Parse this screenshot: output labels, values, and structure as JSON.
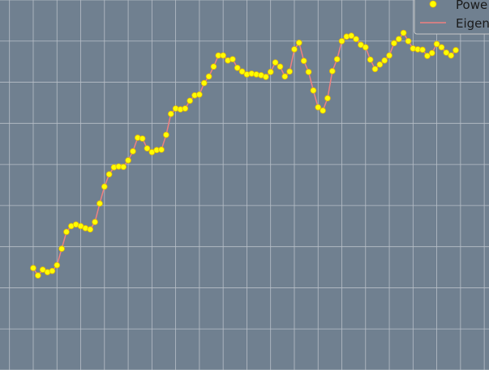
{
  "chart_data": {
    "type": "line",
    "title": "",
    "xlabel": "",
    "ylabel": "",
    "grid": true,
    "legend_placement": "top-right",
    "colors": {
      "background": "#708090",
      "grid": "#b8bfc8",
      "marker_fill": "#ffff00",
      "marker_edge": "#e6b800",
      "line": "#f08080",
      "legend_bg": "#708090",
      "legend_border": "#c8c8c8"
    },
    "series": [
      {
        "name": "Powe",
        "kind": "scatter",
        "values": [
          34.8,
          33.0,
          34.4,
          33.8,
          34.1,
          35.5,
          39.5,
          43.6,
          45.0,
          45.4,
          45.0,
          44.5,
          44.2,
          46.0,
          50.5,
          54.6,
          57.6,
          59.3,
          59.5,
          59.4,
          61.0,
          63.2,
          66.5,
          66.3,
          63.9,
          63.0,
          63.5,
          63.6,
          67.2,
          72.3,
          73.6,
          73.4,
          73.6,
          75.5,
          76.8,
          77.0,
          79.8,
          81.4,
          83.8,
          86.5,
          86.5,
          85.3,
          85.6,
          83.5,
          82.6,
          81.9,
          82.1,
          81.9,
          81.7,
          81.3,
          82.5,
          84.8,
          83.8,
          81.4,
          82.6,
          88.0,
          89.6,
          85.2,
          82.5,
          78.0,
          73.9,
          73.1,
          76.1,
          82.7,
          85.6,
          90.0,
          91.1,
          91.3,
          90.5,
          89.1,
          88.5,
          85.5,
          83.2,
          84.3,
          85.3,
          86.5,
          89.5,
          90.5,
          92.0,
          90.0,
          88.2,
          88.0,
          87.9,
          86.4,
          87.1,
          89.3,
          88.5,
          87.2,
          86.5,
          87.8
        ]
      },
      {
        "name": "Eigen",
        "kind": "line",
        "values": [
          34.8,
          33.0,
          34.4,
          33.8,
          34.1,
          35.5,
          39.5,
          43.6,
          45.0,
          45.4,
          45.0,
          44.5,
          44.2,
          46.0,
          50.5,
          54.6,
          57.6,
          59.3,
          59.5,
          59.4,
          61.0,
          63.2,
          66.5,
          66.3,
          63.9,
          63.0,
          63.5,
          63.6,
          67.2,
          72.3,
          73.6,
          73.4,
          73.6,
          75.5,
          76.8,
          77.0,
          79.8,
          81.4,
          83.8,
          86.5,
          86.5,
          85.3,
          85.6,
          83.5,
          82.6,
          81.9,
          82.1,
          81.9,
          81.7,
          81.3,
          82.5,
          84.8,
          83.8,
          81.4,
          82.6,
          88.0,
          89.6,
          85.2,
          82.5,
          78.0,
          73.9,
          73.1,
          76.1,
          82.7,
          85.6,
          90.0,
          91.1,
          91.3,
          90.5,
          89.1,
          88.5,
          85.5,
          83.2,
          84.3,
          85.3,
          86.5,
          89.5,
          90.5,
          92.0,
          90.0,
          88.2,
          88.0,
          87.9,
          86.4,
          87.1,
          89.3,
          88.5,
          87.2,
          86.5,
          87.8
        ]
      }
    ],
    "x": [
      0,
      1,
      2,
      3,
      4,
      5,
      6,
      7,
      8,
      9,
      10,
      11,
      12,
      13,
      14,
      15,
      16,
      17,
      18,
      19,
      20,
      21,
      22,
      23,
      24,
      25,
      26,
      27,
      28,
      29,
      30,
      31,
      32,
      33,
      34,
      35,
      36,
      37,
      38,
      39,
      40,
      41,
      42,
      43,
      44,
      45,
      46,
      47,
      48,
      49,
      50,
      51,
      52,
      53,
      54,
      55,
      56,
      57,
      58,
      59,
      60,
      61,
      62,
      63,
      64,
      65,
      66,
      67,
      68,
      69,
      70,
      71,
      72,
      73,
      74,
      75,
      76,
      77,
      78,
      79,
      80,
      81,
      82,
      83,
      84,
      85,
      86,
      87,
      88,
      89
    ],
    "xlim": [
      -7,
      96
    ],
    "ylim": [
      10,
      100
    ],
    "x_grid_step": 5,
    "y_grid": [
      10,
      20,
      30,
      40,
      50,
      60,
      70,
      80,
      90,
      100
    ]
  }
}
